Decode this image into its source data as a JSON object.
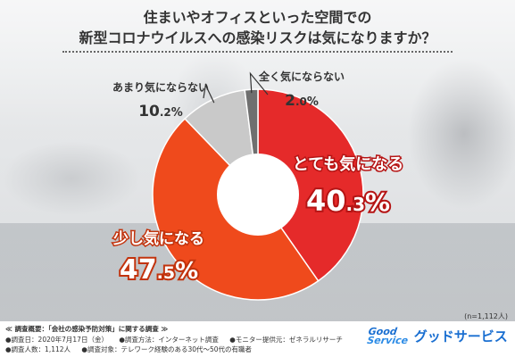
{
  "title_line1": "住まいやオフィスといった空間での",
  "title_line2": "新型コロナウイルスへの感染リスクは気になりますか？",
  "chart_data": {
    "type": "pie",
    "style": "donut",
    "slices": [
      {
        "label": "とても気になる",
        "value": 40.3,
        "value_int": "40",
        "value_dec": ".3",
        "unit": "%",
        "color": "#e52a2a"
      },
      {
        "label": "少し気になる",
        "value": 47.5,
        "value_int": "47",
        "value_dec": ".5",
        "unit": "%",
        "color": "#ef4a1c"
      },
      {
        "label": "あまり気にならない",
        "value": 10.2,
        "value_int": "10",
        "value_dec": ".2",
        "unit": "%",
        "color": "#c9c9c9"
      },
      {
        "label": "全く気にならない",
        "value": 2.0,
        "value_int": "2",
        "value_dec": ".0",
        "unit": "%",
        "color": "#6f6f6f"
      }
    ]
  },
  "sample_size": "(n=1,112人)",
  "survey": {
    "heading": "≪ 調査概要：「会社の感染予防対策」に関する調査 ≫",
    "date": "●調査日：2020年7月17日（金）",
    "method": "●調査方法：インターネット調査",
    "provider": "●モニター提供元：ゼネラルリサーチ",
    "count": "●調査人数：1,112人",
    "target": "●調査対象：テレワーク経験のある30代～50代の有職者"
  },
  "logo": {
    "mark_line1": "Good",
    "mark_line2": "Service",
    "text": "グッドサービス"
  }
}
